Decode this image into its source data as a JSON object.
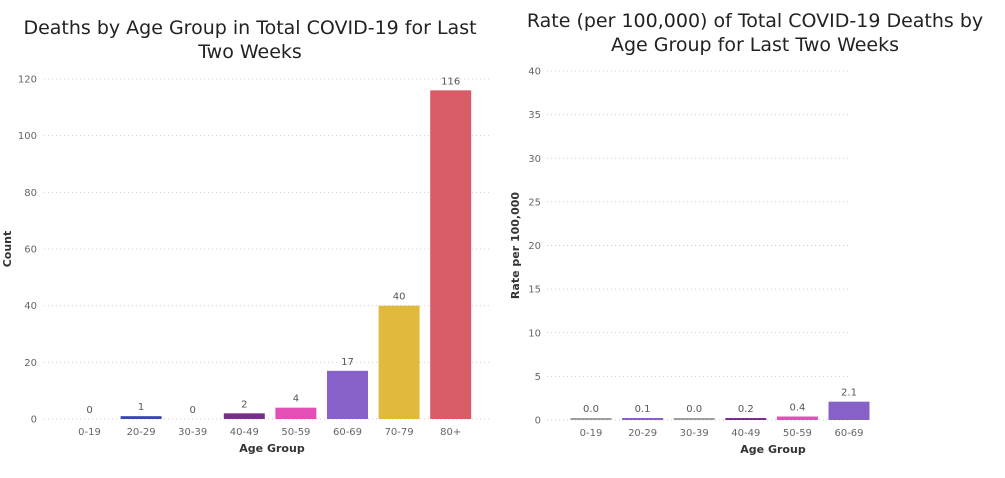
{
  "chart_data": [
    {
      "type": "bar",
      "title": "Deaths by Age Group in Total COVID-19 for Last\nTwo Weeks",
      "xlabel": "Age Group",
      "ylabel": "Count",
      "categories": [
        "0-19",
        "20-29",
        "30-39",
        "40-49",
        "50-59",
        "60-69",
        "70-79",
        "80+"
      ],
      "values": [
        0,
        1,
        0,
        2,
        4,
        17,
        40,
        116
      ],
      "data_labels": [
        "0",
        "1",
        "0",
        "2",
        "4",
        "17",
        "40",
        "116"
      ],
      "yticks": [
        0,
        20,
        40,
        60,
        80,
        100,
        120
      ],
      "ylim": [
        0,
        120
      ],
      "grid": true,
      "colors": [
        "#9e9e9e",
        "#3949ab",
        "#9e9e9e",
        "#7b2d8e",
        "#e34fb5",
        "#8860c9",
        "#e1b93c",
        "#d85c67"
      ]
    },
    {
      "type": "bar",
      "title": "Rate (per 100,000) of Total COVID-19 Deaths by\nAge Group for Last Two Weeks",
      "xlabel": "Age Group",
      "ylabel": "Rate per 100,000",
      "categories": [
        "0-19",
        "20-29",
        "30-39",
        "40-49",
        "50-59",
        "60-69"
      ],
      "values": [
        0.0,
        0.1,
        0.0,
        0.2,
        0.4,
        2.1
      ],
      "data_labels": [
        "0.0",
        "0.1",
        "0.0",
        "0.2",
        "0.4",
        "2.1"
      ],
      "yticks": [
        0,
        5,
        10,
        15,
        20,
        25,
        30,
        35,
        40
      ],
      "ylim": [
        0,
        40
      ],
      "grid": true,
      "colors": [
        "#9e9e9e",
        "#8860c9",
        "#9e9e9e",
        "#7b2d8e",
        "#e34fb5",
        "#8860c9"
      ]
    }
  ]
}
